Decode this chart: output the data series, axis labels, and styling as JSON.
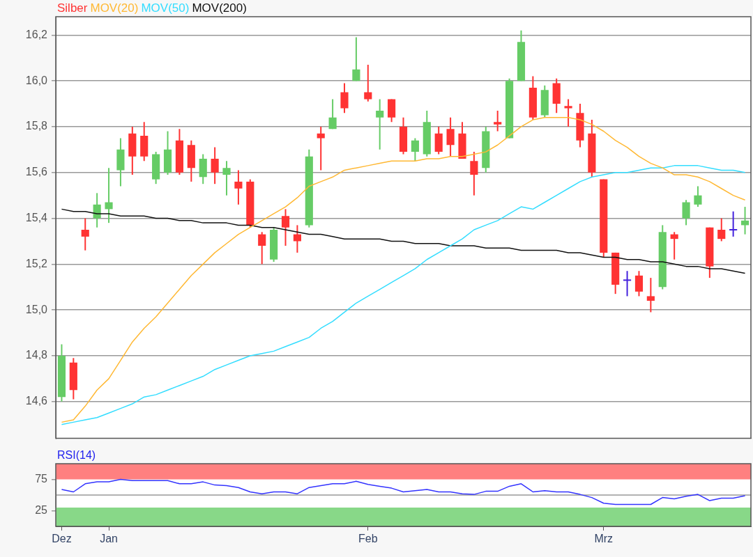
{
  "chart_data": [
    {
      "type": "candlestick",
      "categories": [
        null,
        null,
        null,
        null,
        null,
        null,
        null,
        null,
        null,
        null,
        null,
        null,
        null,
        null,
        null,
        null,
        null,
        null,
        null,
        null,
        null,
        null,
        null,
        null,
        null,
        null,
        null,
        null,
        null,
        null,
        null,
        null,
        null,
        null,
        null,
        null,
        null,
        null,
        null,
        null,
        null,
        null,
        null,
        null,
        null,
        null,
        null,
        null,
        null,
        null,
        null,
        null,
        null,
        null,
        null,
        null,
        null,
        null,
        null
      ],
      "ylim": [
        14.44,
        16.28
      ],
      "yticks": [
        {
          "value": 14.6,
          "label": "14,6"
        },
        {
          "value": 14.8,
          "label": "14,8"
        },
        {
          "value": 15.0,
          "label": "15,0"
        },
        {
          "value": 15.2,
          "label": "15,2"
        },
        {
          "value": 15.4,
          "label": "15,4"
        },
        {
          "value": 15.6,
          "label": "15,6"
        },
        {
          "value": 15.8,
          "label": "15,8"
        },
        {
          "value": 16.0,
          "label": "16,0"
        },
        {
          "value": 16.2,
          "label": "16,2"
        }
      ],
      "grid": "y",
      "legend": "top left",
      "tick_labels": "y",
      "marker": "none",
      "series": [
        {
          "name": "Silber",
          "color": "#ff3333",
          "ohlc": [
            [
              14.62,
              14.85,
              14.6,
              14.8
            ],
            [
              14.77,
              14.79,
              14.61,
              14.65
            ],
            [
              15.35,
              15.4,
              15.26,
              15.32
            ],
            [
              15.4,
              15.51,
              15.36,
              15.46
            ],
            [
              15.44,
              15.62,
              15.38,
              15.47
            ],
            [
              15.61,
              15.75,
              15.54,
              15.7
            ],
            [
              15.77,
              15.8,
              15.59,
              15.67
            ],
            [
              15.76,
              15.82,
              15.65,
              15.67
            ],
            [
              15.57,
              15.69,
              15.55,
              15.68
            ],
            [
              15.6,
              15.78,
              15.59,
              15.7
            ],
            [
              15.74,
              15.79,
              15.59,
              15.6
            ],
            [
              15.72,
              15.74,
              15.56,
              15.62
            ],
            [
              15.58,
              15.68,
              15.55,
              15.66
            ],
            [
              15.66,
              15.71,
              15.55,
              15.6
            ],
            [
              15.59,
              15.65,
              15.5,
              15.62
            ],
            [
              15.56,
              15.61,
              15.46,
              15.53
            ],
            [
              15.56,
              15.57,
              15.36,
              15.37
            ],
            [
              15.33,
              15.34,
              15.2,
              15.28
            ],
            [
              15.22,
              15.36,
              15.21,
              15.35
            ],
            [
              15.41,
              15.44,
              15.28,
              15.36
            ],
            [
              15.33,
              15.37,
              15.25,
              15.3
            ],
            [
              15.37,
              15.7,
              15.36,
              15.67
            ],
            [
              15.77,
              15.8,
              15.61,
              15.75
            ],
            [
              15.79,
              15.92,
              15.79,
              15.84
            ],
            [
              15.95,
              15.99,
              15.86,
              15.88
            ],
            [
              16.0,
              16.19,
              16.0,
              16.05
            ],
            [
              15.95,
              16.07,
              15.91,
              15.92
            ],
            [
              15.84,
              15.92,
              15.7,
              15.87
            ],
            [
              15.92,
              15.92,
              15.82,
              15.84
            ],
            [
              15.8,
              15.84,
              15.68,
              15.69
            ],
            [
              15.69,
              15.75,
              15.65,
              15.74
            ],
            [
              15.68,
              15.87,
              15.67,
              15.82
            ],
            [
              15.77,
              15.8,
              15.68,
              15.69
            ],
            [
              15.79,
              15.84,
              15.67,
              15.72
            ],
            [
              15.77,
              15.82,
              15.66,
              15.66
            ],
            [
              15.65,
              15.69,
              15.5,
              15.59
            ],
            [
              15.62,
              15.8,
              15.6,
              15.78
            ],
            [
              15.82,
              15.87,
              15.78,
              15.81
            ],
            [
              15.75,
              16.01,
              15.75,
              16.0
            ],
            [
              16.0,
              16.22,
              16.0,
              16.17
            ],
            [
              15.97,
              16.02,
              15.83,
              15.84
            ],
            [
              15.85,
              15.98,
              15.84,
              15.96
            ],
            [
              15.99,
              16.01,
              15.86,
              15.9
            ],
            [
              15.89,
              15.92,
              15.8,
              15.88
            ],
            [
              15.86,
              15.9,
              15.71,
              15.74
            ],
            [
              15.77,
              15.83,
              15.58,
              15.6
            ],
            [
              15.57,
              15.57,
              15.23,
              15.25
            ],
            [
              15.25,
              15.25,
              15.07,
              15.11
            ],
            [
              15.13,
              15.17,
              15.06,
              15.13
            ],
            [
              15.15,
              15.17,
              15.06,
              15.08
            ],
            [
              15.06,
              15.14,
              14.99,
              15.04
            ],
            [
              15.1,
              15.37,
              15.09,
              15.34
            ],
            [
              15.33,
              15.34,
              15.22,
              15.31
            ],
            [
              15.4,
              15.48,
              15.37,
              15.47
            ],
            [
              15.46,
              15.54,
              15.45,
              15.5
            ],
            [
              15.36,
              15.36,
              15.14,
              15.19
            ],
            [
              15.35,
              15.4,
              15.3,
              15.31
            ],
            [
              15.35,
              15.43,
              15.32,
              15.35
            ],
            [
              15.37,
              15.45,
              15.33,
              15.39
            ]
          ],
          "colors": [
            "#66cc66",
            "#ff3333",
            "#ff3333",
            "#66cc66",
            "#66cc66",
            "#66cc66",
            "#ff3333",
            "#ff3333",
            "#66cc66",
            "#66cc66",
            "#ff3333",
            "#ff3333",
            "#66cc66",
            "#ff3333",
            "#66cc66",
            "#ff3333",
            "#ff3333",
            "#ff3333",
            "#66cc66",
            "#ff3333",
            "#ff3333",
            "#66cc66",
            "#ff3333",
            "#66cc66",
            "#ff3333",
            "#66cc66",
            "#ff3333",
            "#66cc66",
            "#ff3333",
            "#ff3333",
            "#66cc66",
            "#66cc66",
            "#ff3333",
            "#ff3333",
            "#ff3333",
            "#ff3333",
            "#66cc66",
            "#ff3333",
            "#66cc66",
            "#66cc66",
            "#ff3333",
            "#66cc66",
            "#ff3333",
            "#ff3333",
            "#ff3333",
            "#ff3333",
            "#ff3333",
            "#ff3333",
            "#4422dd",
            "#ff3333",
            "#ff3333",
            "#66cc66",
            "#ff3333",
            "#66cc66",
            "#66cc66",
            "#ff3333",
            "#ff3333",
            "#4422dd",
            "#66cc66"
          ]
        },
        {
          "name": "MOV(20)",
          "type": "line",
          "color": "#ffb833",
          "values": [
            14.51,
            14.52,
            14.58,
            14.65,
            14.7,
            14.78,
            14.86,
            14.92,
            14.97,
            15.03,
            15.09,
            15.15,
            15.2,
            15.25,
            15.29,
            15.33,
            15.36,
            15.39,
            15.42,
            15.45,
            15.49,
            15.54,
            15.56,
            15.58,
            15.61,
            15.62,
            15.63,
            15.64,
            15.65,
            15.65,
            15.65,
            15.66,
            15.66,
            15.67,
            15.67,
            15.68,
            15.69,
            15.72,
            15.76,
            15.8,
            15.83,
            15.84,
            15.84,
            15.84,
            15.83,
            15.81,
            15.78,
            15.74,
            15.71,
            15.67,
            15.64,
            15.62,
            15.59,
            15.59,
            15.58,
            15.56,
            15.53,
            15.5,
            15.48
          ]
        },
        {
          "name": "MOV(50)",
          "type": "line",
          "color": "#33ddff",
          "values": [
            14.5,
            14.51,
            14.52,
            14.53,
            14.55,
            14.57,
            14.59,
            14.62,
            14.63,
            14.65,
            14.67,
            14.69,
            14.71,
            14.74,
            14.76,
            14.78,
            14.8,
            14.81,
            14.82,
            14.84,
            14.86,
            14.88,
            14.92,
            14.95,
            14.99,
            15.03,
            15.06,
            15.09,
            15.12,
            15.15,
            15.18,
            15.22,
            15.25,
            15.28,
            15.31,
            15.35,
            15.37,
            15.39,
            15.42,
            15.45,
            15.44,
            15.47,
            15.5,
            15.53,
            15.56,
            15.58,
            15.59,
            15.6,
            15.6,
            15.61,
            15.62,
            15.62,
            15.63,
            15.63,
            15.63,
            15.62,
            15.61,
            15.61,
            15.6
          ]
        },
        {
          "name": "MOV(200)",
          "type": "line",
          "color": "#111111",
          "values": [
            15.44,
            15.43,
            15.43,
            15.42,
            15.42,
            15.41,
            15.41,
            15.41,
            15.4,
            15.4,
            15.39,
            15.39,
            15.38,
            15.38,
            15.38,
            15.37,
            15.37,
            15.36,
            15.36,
            15.35,
            15.34,
            15.33,
            15.33,
            15.32,
            15.31,
            15.31,
            15.31,
            15.31,
            15.3,
            15.3,
            15.29,
            15.29,
            15.29,
            15.28,
            15.28,
            15.28,
            15.27,
            15.27,
            15.27,
            15.26,
            15.26,
            15.26,
            15.26,
            15.25,
            15.25,
            15.24,
            15.23,
            15.23,
            15.22,
            15.22,
            15.21,
            15.21,
            15.2,
            15.19,
            15.19,
            15.18,
            15.18,
            15.17,
            15.16
          ]
        }
      ]
    },
    {
      "type": "line",
      "title": "RSI(14)",
      "categories": [
        "Dez",
        null,
        null,
        null,
        "Jan",
        null,
        null,
        null,
        null,
        null,
        null,
        null,
        null,
        null,
        null,
        null,
        null,
        null,
        null,
        null,
        null,
        null,
        null,
        null,
        null,
        null,
        "Feb",
        null,
        null,
        null,
        null,
        null,
        null,
        null,
        null,
        null,
        null,
        null,
        null,
        null,
        null,
        null,
        null,
        null,
        null,
        null,
        "Mrz",
        null,
        null,
        null,
        null,
        null,
        null,
        null,
        null,
        null,
        null,
        null,
        null
      ],
      "ylim": [
        0,
        100
      ],
      "yticks": [
        25,
        75
      ],
      "grid": false,
      "legend": false,
      "marker": "none",
      "bands": [
        {
          "axis": "y",
          "from": 75,
          "to": 100,
          "color": "#ff8080"
        },
        {
          "axis": "y",
          "from": 0,
          "to": 30,
          "color": "#88d888"
        }
      ],
      "ref_lines": [
        {
          "axis": "y",
          "value": 50,
          "color": "#999999"
        }
      ],
      "series": [
        {
          "color": "#3333ff",
          "values": [
            59,
            55,
            68,
            71,
            71,
            75,
            73,
            73,
            73,
            73,
            68,
            68,
            71,
            66,
            65,
            62,
            55,
            52,
            55,
            55,
            52,
            62,
            65,
            68,
            68,
            72,
            67,
            64,
            61,
            55,
            57,
            59,
            55,
            55,
            52,
            51,
            56,
            56,
            64,
            68,
            55,
            57,
            55,
            55,
            51,
            46,
            37,
            35,
            35,
            35,
            35,
            46,
            44,
            48,
            51,
            41,
            45,
            45,
            49
          ]
        }
      ]
    }
  ]
}
